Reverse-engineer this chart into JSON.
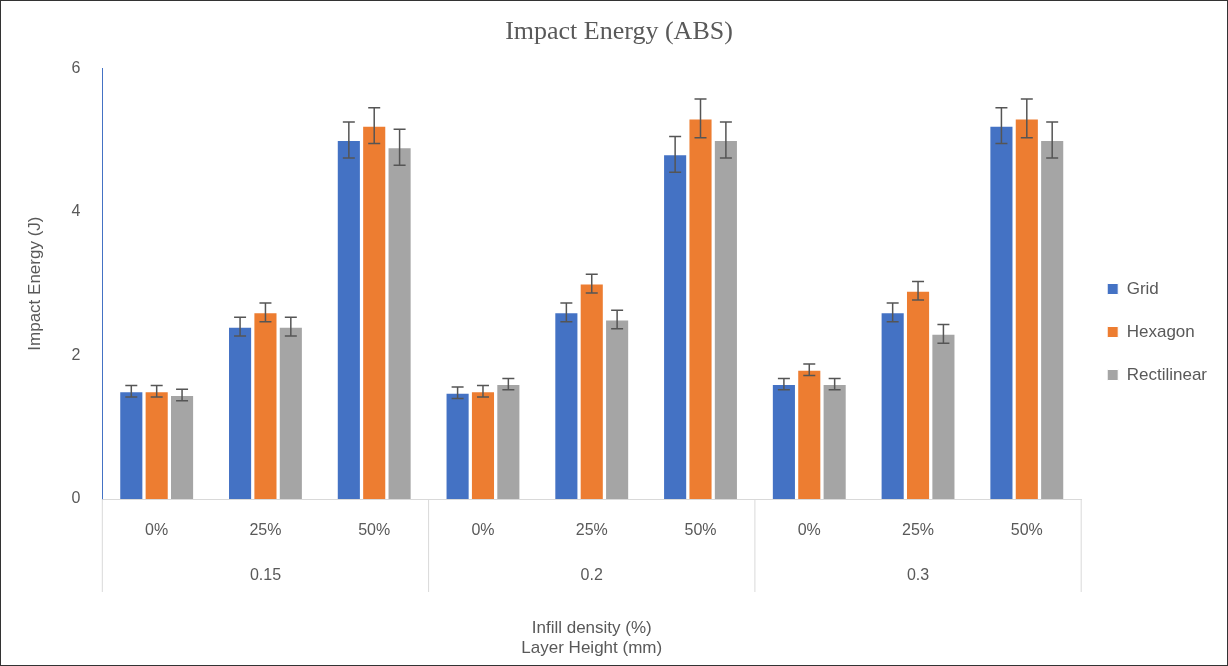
{
  "chart_data": {
    "type": "bar",
    "title": "Impact Energy (ABS)",
    "xlabel": "Infill density (%)\nLayer Height (mm)",
    "ylabel": "Impact Energy (J)",
    "categories": [
      "0%",
      "25%",
      "50%",
      "0%",
      "25%",
      "50%",
      "0%",
      "25%",
      "50%"
    ],
    "annotations": [
      "0.15",
      "0.2",
      "0.3"
    ],
    "series": [
      {
        "name": "Grid",
        "color": "#4472c4",
        "values": [
          1.5,
          2.4,
          5.0,
          1.48,
          2.6,
          4.8,
          1.6,
          2.6,
          5.2
        ],
        "errors": [
          0.08,
          0.13,
          0.25,
          0.08,
          0.13,
          0.25,
          0.08,
          0.13,
          0.25
        ]
      },
      {
        "name": "Hexagon",
        "color": "#ed7d31",
        "values": [
          1.5,
          2.6,
          5.2,
          1.5,
          3.0,
          5.3,
          1.8,
          2.9,
          5.3
        ],
        "errors": [
          0.08,
          0.13,
          0.25,
          0.08,
          0.13,
          0.27,
          0.08,
          0.13,
          0.27
        ]
      },
      {
        "name": "Rectilinear",
        "color": "#a5a5a5",
        "values": [
          1.45,
          2.4,
          4.9,
          1.6,
          2.5,
          5.0,
          1.6,
          2.3,
          5.0
        ],
        "errors": [
          0.08,
          0.13,
          0.25,
          0.08,
          0.13,
          0.25,
          0.08,
          0.13,
          0.25
        ]
      }
    ],
    "ylim": [
      0,
      6
    ],
    "yticks": [
      0,
      2,
      4,
      6
    ],
    "grid": false,
    "legend": "right"
  }
}
